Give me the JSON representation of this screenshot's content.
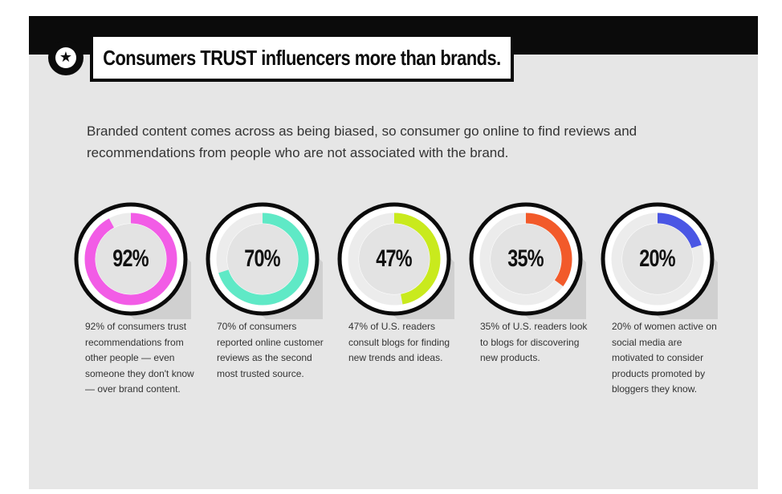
{
  "header": {
    "title": "Consumers TRUST influencers more than brands.",
    "icon": "star-icon"
  },
  "intro": "Branded content comes across as being biased, so consumer go online to find reviews and recommendations from people who are not associated with the brand.",
  "stats": [
    {
      "percent": 92,
      "label": "92%",
      "color": "#f25ce6",
      "description": "92% of consumers trust recommendations from other people — even someone they don't know — over brand content."
    },
    {
      "percent": 70,
      "label": "70%",
      "color": "#5fe9c6",
      "description": "70% of consumers reported online customer reviews as the second most trusted source."
    },
    {
      "percent": 47,
      "label": "47%",
      "color": "#c9ea1d",
      "description": "47% of U.S. readers consult blogs for finding new trends and ideas."
    },
    {
      "percent": 35,
      "label": "35%",
      "color": "#f25a2a",
      "description": "35% of U.S. readers look to blogs for discovering new products."
    },
    {
      "percent": 20,
      "label": "20%",
      "color": "#4a56e4",
      "description": "20% of women active on social media are motivated to consider products promoted by bloggers they know."
    }
  ]
}
